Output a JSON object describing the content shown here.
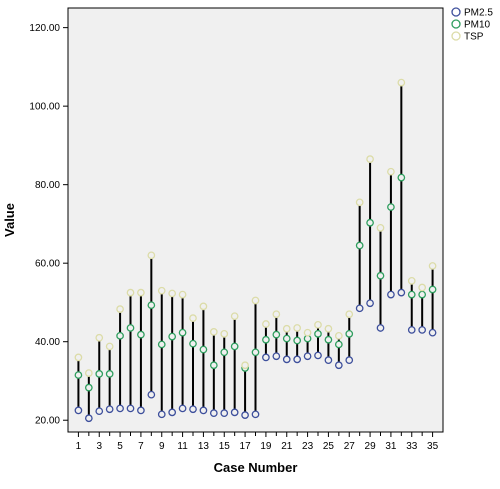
{
  "chart_data": {
    "type": "scatter",
    "xlabel": "Case Number",
    "ylabel": "Value",
    "ylim": [
      17,
      125
    ],
    "xlim": [
      0,
      36
    ],
    "y_ticks": [
      "20.00",
      "40.00",
      "60.00",
      "80.00",
      "100.00",
      "120.00"
    ],
    "x_ticks": [
      "1",
      "3",
      "5",
      "7",
      "9",
      "11",
      "13",
      "15",
      "17",
      "19",
      "21",
      "23",
      "25",
      "27",
      "29",
      "31",
      "33",
      "35"
    ],
    "x_minor_ticks": [
      2,
      4,
      6,
      8,
      10,
      12,
      14,
      16,
      18,
      20,
      22,
      24,
      26,
      28,
      30,
      32,
      34
    ],
    "x": [
      1,
      2,
      3,
      4,
      5,
      6,
      7,
      8,
      9,
      10,
      11,
      12,
      13,
      14,
      15,
      16,
      17,
      18,
      19,
      20,
      21,
      22,
      23,
      24,
      25,
      26,
      27,
      28,
      29,
      30,
      31,
      32,
      33,
      34,
      35
    ],
    "grid": false,
    "legend_position": "top-right",
    "series": [
      {
        "name": "PM2.5",
        "color": "#3d4f9c",
        "values": [
          22.5,
          20.5,
          22.3,
          22.8,
          23,
          23,
          22.5,
          26.5,
          21.5,
          22,
          23,
          22.8,
          22.5,
          21.8,
          21.8,
          22,
          21.3,
          21.5,
          36,
          36.3,
          35.5,
          35.5,
          36.3,
          36.5,
          35.3,
          34,
          35.3,
          48.5,
          49.8,
          43.5,
          52,
          52.5,
          43,
          43,
          42.3
        ]
      },
      {
        "name": "PM10",
        "color": "#2e9e5e",
        "values": [
          31.5,
          28.3,
          31.8,
          31.8,
          41.5,
          43.5,
          41.8,
          49.3,
          39.3,
          41.3,
          42.3,
          39.5,
          38,
          34,
          37.3,
          38.8,
          33.3,
          37.3,
          40.5,
          41.8,
          40.8,
          40.3,
          40.8,
          42,
          40.5,
          39.3,
          42,
          64.5,
          70.3,
          56.8,
          74.3,
          81.8,
          52,
          52,
          53.3
        ]
      },
      {
        "name": "TSP",
        "color": "#dcdca8",
        "values": [
          36,
          32,
          41,
          38.8,
          48.3,
          52.5,
          52.5,
          62,
          53,
          52.3,
          52,
          46,
          49,
          42.5,
          42,
          46.5,
          34,
          50.5,
          44.5,
          47,
          43.3,
          43.5,
          42.3,
          44.3,
          43.3,
          41.5,
          47,
          75.5,
          86.5,
          69,
          83.3,
          106,
          55.5,
          53.8,
          59.3
        ]
      }
    ]
  }
}
